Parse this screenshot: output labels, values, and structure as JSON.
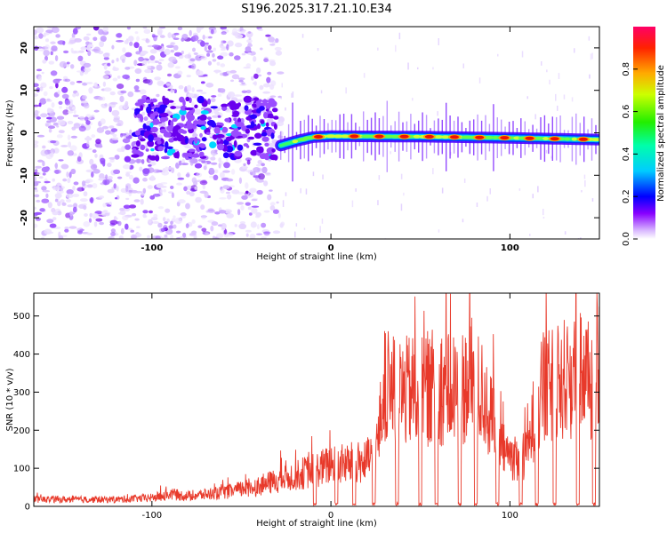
{
  "title": "S196.2025.317.21.10.E34",
  "chart_data": [
    {
      "type": "heatmap",
      "name": "spectrogram",
      "xlabel": "Height of straight line (km)",
      "ylabel": "Frequency (Hz)",
      "xlim": [
        -166,
        150
      ],
      "ylim": [
        -25,
        25
      ],
      "xticks": [
        -100,
        0,
        100
      ],
      "yticks": [
        -20,
        -10,
        0,
        10,
        20
      ],
      "colorbar": {
        "label": "Normalized spectral amplitude",
        "range": [
          0,
          1
        ],
        "ticks": [
          0.0,
          0.2,
          0.4,
          0.6,
          0.8
        ],
        "tick_labels": [
          "0.0",
          "0.2",
          "0.4",
          "0.6",
          "0.8"
        ]
      },
      "ridge": {
        "description": "narrow-band carrier near 0 Hz",
        "x_start": -28,
        "x_end": 150,
        "freq_hz": [
          [
            -28,
            -3.0
          ],
          [
            -20,
            -2.0
          ],
          [
            -10,
            -1.0
          ],
          [
            0,
            -0.8
          ],
          [
            50,
            -0.9
          ],
          [
            100,
            -1.2
          ],
          [
            150,
            -1.6
          ]
        ],
        "bright_spots_x": [
          -7,
          13,
          27,
          41,
          55,
          69,
          83,
          97,
          111,
          125,
          141
        ]
      },
      "noise_region": {
        "x_start": -166,
        "x_end": -35,
        "dense_cluster_x": [
          -110,
          -30
        ],
        "dense_cluster_freq": [
          -6,
          8
        ]
      }
    },
    {
      "type": "line",
      "name": "snr",
      "xlabel": "Height of straight line (km)",
      "ylabel": "SNR (10 * v/v)",
      "xlim": [
        -166,
        150
      ],
      "ylim": [
        0,
        560
      ],
      "xticks": [
        -100,
        0,
        100
      ],
      "yticks": [
        0,
        100,
        200,
        300,
        400,
        500
      ],
      "color": "#e8392a",
      "envelope": [
        [
          -166,
          20
        ],
        [
          -120,
          20
        ],
        [
          -100,
          25
        ],
        [
          -90,
          35
        ],
        [
          -80,
          30
        ],
        [
          -70,
          35
        ],
        [
          -60,
          40
        ],
        [
          -50,
          50
        ],
        [
          -40,
          60
        ],
        [
          -30,
          75
        ],
        [
          -20,
          90
        ],
        [
          -10,
          105
        ],
        [
          0,
          120
        ],
        [
          10,
          125
        ],
        [
          20,
          130
        ],
        [
          26,
          180
        ],
        [
          30,
          350
        ],
        [
          35,
          330
        ],
        [
          40,
          330
        ],
        [
          50,
          340
        ],
        [
          60,
          350
        ],
        [
          70,
          345
        ],
        [
          80,
          360
        ],
        [
          85,
          320
        ],
        [
          90,
          250
        ],
        [
          95,
          170
        ],
        [
          100,
          150
        ],
        [
          105,
          140
        ],
        [
          110,
          150
        ],
        [
          112,
          220
        ],
        [
          115,
          310
        ],
        [
          125,
          360
        ],
        [
          135,
          380
        ],
        [
          140,
          400
        ],
        [
          145,
          370
        ],
        [
          150,
          400
        ]
      ],
      "dips_x": [
        -9,
        3,
        13,
        24,
        37,
        50,
        59,
        72,
        81,
        93,
        106,
        115,
        125,
        138,
        147
      ]
    }
  ]
}
